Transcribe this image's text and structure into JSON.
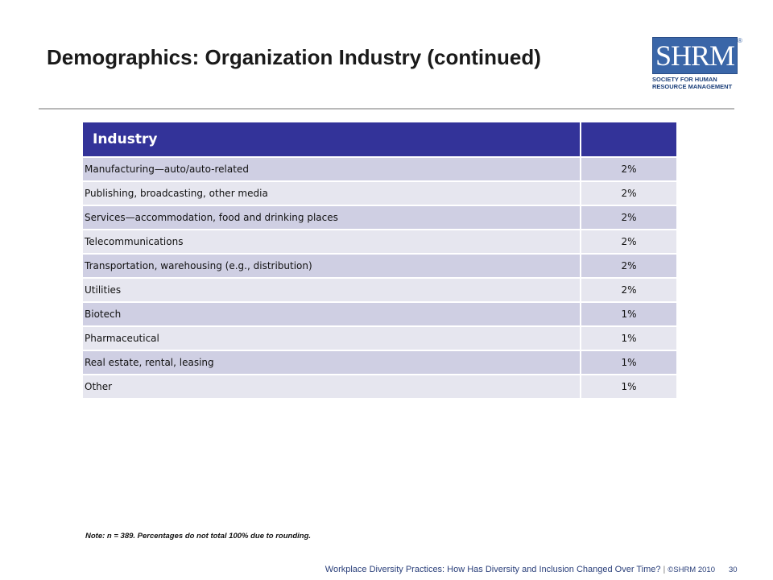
{
  "slide": {
    "title": "Demographics: Organization Industry (continued)",
    "note": "Note: n = 389. Percentages do not total 100% due to rounding.",
    "footer_text": "Workplace Diversity Practices: How Has Diversity and Inclusion Changed Over Time?",
    "footer_separator": "|",
    "footer_copyright": "©SHRM 2010",
    "page_number": "30"
  },
  "logo": {
    "word": "SHRM",
    "registered": "®",
    "line1": "SOCIETY FOR HUMAN",
    "line2": "RESOURCE MANAGEMENT"
  },
  "table": {
    "header": "Industry",
    "header_value": "",
    "rows": [
      {
        "industry": "Manufacturing—auto/auto-related",
        "percent": "2%"
      },
      {
        "industry": "Publishing, broadcasting, other media",
        "percent": "2%"
      },
      {
        "industry": "Services—accommodation, food and drinking places",
        "percent": "2%"
      },
      {
        "industry": "Telecommunications",
        "percent": "2%"
      },
      {
        "industry": "Transportation, warehousing (e.g., distribution)",
        "percent": "2%"
      },
      {
        "industry": "Utilities",
        "percent": "2%"
      },
      {
        "industry": "Biotech",
        "percent": "1%"
      },
      {
        "industry": "Pharmaceutical",
        "percent": "1%"
      },
      {
        "industry": "Real estate, rental, leasing",
        "percent": "1%"
      },
      {
        "industry": "Other",
        "percent": "1%"
      }
    ]
  },
  "colors": {
    "header_bg": "#333399",
    "row_odd": "#cfcfe3",
    "row_even": "#e6e6ef",
    "logo_blue": "#3a66a8"
  }
}
